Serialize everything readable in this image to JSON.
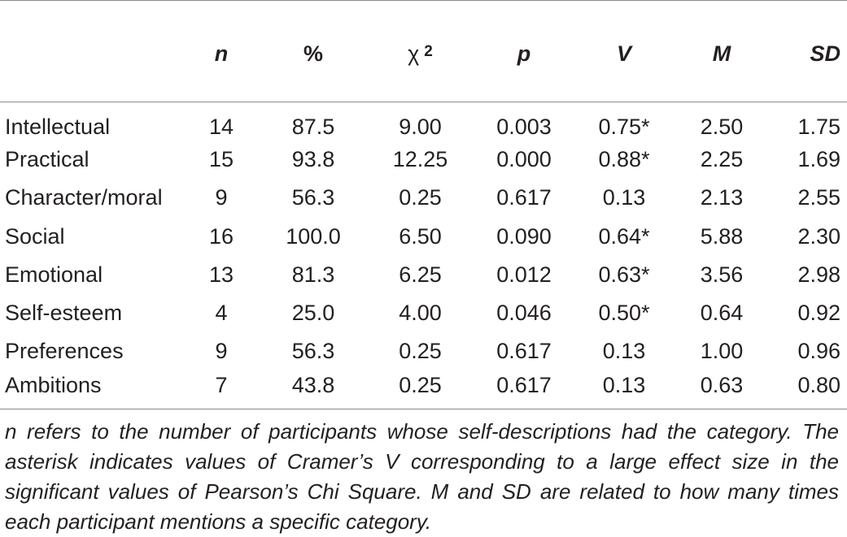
{
  "headers": [
    "n",
    "%",
    "χ",
    "p",
    "V",
    "M",
    "SD"
  ],
  "chi_superscript": "2",
  "rows": [
    {
      "label": "Intellectual",
      "n": "14",
      "pct": "87.5",
      "chi": "9.00",
      "p": "0.003",
      "v": "0.75*",
      "m": "2.50",
      "sd": "1.75"
    },
    {
      "label": "Practical",
      "n": "15",
      "pct": "93.8",
      "chi": "12.25",
      "p": "0.000",
      "v": "0.88*",
      "m": "2.25",
      "sd": "1.69"
    },
    {
      "label": "Character/moral",
      "n": "9",
      "pct": "56.3",
      "chi": "0.25",
      "p": "0.617",
      "v": "0.13",
      "m": "2.13",
      "sd": "2.55"
    },
    {
      "label": "Social",
      "n": "16",
      "pct": "100.0",
      "chi": "6.50",
      "p": "0.090",
      "v": "0.64*",
      "m": "5.88",
      "sd": "2.30"
    },
    {
      "label": "Emotional",
      "n": "13",
      "pct": "81.3",
      "chi": "6.25",
      "p": "0.012",
      "v": "0.63*",
      "m": "3.56",
      "sd": "2.98"
    },
    {
      "label": "Self-esteem",
      "n": "4",
      "pct": "25.0",
      "chi": "4.00",
      "p": "0.046",
      "v": "0.50*",
      "m": "0.64",
      "sd": "0.92"
    },
    {
      "label": "Preferences",
      "n": "9",
      "pct": "56.3",
      "chi": "0.25",
      "p": "0.617",
      "v": "0.13",
      "m": "1.00",
      "sd": "0.96"
    },
    {
      "label": "Ambitions",
      "n": "7",
      "pct": "43.8",
      "chi": "0.25",
      "p": "0.617",
      "v": "0.13",
      "m": "0.63",
      "sd": "0.80"
    }
  ],
  "note": "n refers to the number of participants whose self-descriptions had the category. The asterisk indicates values of Cramer’s V corresponding to a large effect size in the significant values of Pearson’s Chi Square. M and SD are related to how many times each participant mentions a specific category."
}
